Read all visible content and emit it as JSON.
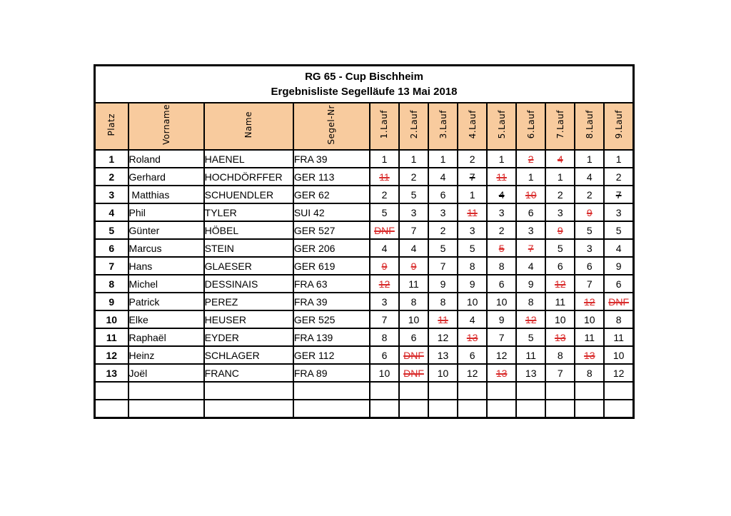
{
  "title": {
    "line1": "RG 65 - Cup Bischheim",
    "line2": "Ergebnisliste Segelläufe 13 Mai 2018"
  },
  "colors": {
    "header_fill": "#F8CB9E",
    "discard_red": "#D92B2B",
    "border": "#000000"
  },
  "columns": [
    "Platz",
    "Vorname",
    "Name",
    "Segel-Nr",
    "1.Lauf",
    "2.Lauf",
    "3.Lauf",
    "4.Lauf",
    "5.Lauf",
    "6.Lauf",
    "7.Lauf",
    "8.Lauf",
    "9.Lauf"
  ],
  "empty_row_count": 2,
  "rows": [
    {
      "platz": "1",
      "vorname": "Roland",
      "name": "HAENEL",
      "segel_nr": "FRA 39",
      "laeufe": [
        {
          "v": "1"
        },
        {
          "v": "1"
        },
        {
          "v": "1"
        },
        {
          "v": "2"
        },
        {
          "v": "1"
        },
        {
          "v": "2",
          "red": true,
          "strike": true
        },
        {
          "v": "4",
          "red": true,
          "strike": true
        },
        {
          "v": "1"
        },
        {
          "v": "1"
        }
      ]
    },
    {
      "platz": "2",
      "vorname": "Gerhard",
      "name": "HOCHDÖRFFER",
      "segel_nr": "GER 113",
      "laeufe": [
        {
          "v": "11",
          "red": true,
          "strike": true
        },
        {
          "v": "2"
        },
        {
          "v": "4"
        },
        {
          "v": "7",
          "strike": true
        },
        {
          "v": "11",
          "red": true,
          "strike": true
        },
        {
          "v": "1"
        },
        {
          "v": "1"
        },
        {
          "v": "4"
        },
        {
          "v": "2"
        }
      ]
    },
    {
      "platz": "3",
      "vorname": " Matthias",
      "name": "SCHUENDLER",
      "segel_nr": "GER 62",
      "laeufe": [
        {
          "v": "2"
        },
        {
          "v": "5"
        },
        {
          "v": "6"
        },
        {
          "v": "1"
        },
        {
          "v": "4",
          "strike": true
        },
        {
          "v": "10",
          "red": true,
          "strike": true
        },
        {
          "v": "2"
        },
        {
          "v": "2"
        },
        {
          "v": "7",
          "strike": true
        }
      ]
    },
    {
      "platz": "4",
      "vorname": "Phil",
      "name": "TYLER",
      "segel_nr": "SUI 42",
      "laeufe": [
        {
          "v": "5"
        },
        {
          "v": "3"
        },
        {
          "v": "3"
        },
        {
          "v": "11",
          "red": true,
          "strike": true
        },
        {
          "v": "3"
        },
        {
          "v": "6"
        },
        {
          "v": "3"
        },
        {
          "v": "9",
          "red": true,
          "strike": true
        },
        {
          "v": "3"
        }
      ]
    },
    {
      "platz": "5",
      "vorname": "Günter",
      "name": "HÖBEL",
      "segel_nr": "GER 527",
      "laeufe": [
        {
          "v": "DNF",
          "red": true,
          "strike": true
        },
        {
          "v": "7"
        },
        {
          "v": "2"
        },
        {
          "v": "3"
        },
        {
          "v": "2"
        },
        {
          "v": "3"
        },
        {
          "v": "9",
          "red": true,
          "strike": true
        },
        {
          "v": "5"
        },
        {
          "v": "5"
        }
      ]
    },
    {
      "platz": "6",
      "vorname": "Marcus",
      "name": "STEIN",
      "segel_nr": "GER 206",
      "laeufe": [
        {
          "v": "4"
        },
        {
          "v": "4"
        },
        {
          "v": "5"
        },
        {
          "v": "5"
        },
        {
          "v": "5",
          "red": true,
          "strike": true
        },
        {
          "v": "7",
          "red": true,
          "strike": true
        },
        {
          "v": "5"
        },
        {
          "v": "3"
        },
        {
          "v": "4"
        }
      ]
    },
    {
      "platz": "7",
      "vorname": "Hans",
      "name": "GLAESER",
      "segel_nr": "GER 619",
      "laeufe": [
        {
          "v": "9",
          "red": true,
          "strike": true
        },
        {
          "v": "9",
          "red": true,
          "strike": true
        },
        {
          "v": "7"
        },
        {
          "v": "8"
        },
        {
          "v": "8"
        },
        {
          "v": "4"
        },
        {
          "v": "6"
        },
        {
          "v": "6"
        },
        {
          "v": "9"
        }
      ]
    },
    {
      "platz": "8",
      "vorname": "Michel",
      "name": "DESSINAIS",
      "segel_nr": "FRA 63",
      "laeufe": [
        {
          "v": "12",
          "red": true,
          "strike": true
        },
        {
          "v": "11"
        },
        {
          "v": "9"
        },
        {
          "v": "9"
        },
        {
          "v": "6"
        },
        {
          "v": "9"
        },
        {
          "v": "12",
          "red": true,
          "strike": true
        },
        {
          "v": "7"
        },
        {
          "v": "6"
        }
      ]
    },
    {
      "platz": "9",
      "vorname": "Patrick",
      "name": "PEREZ",
      "segel_nr": "FRA 39",
      "laeufe": [
        {
          "v": "3"
        },
        {
          "v": "8"
        },
        {
          "v": "8"
        },
        {
          "v": "10"
        },
        {
          "v": "10"
        },
        {
          "v": "8"
        },
        {
          "v": "11"
        },
        {
          "v": "12",
          "red": true,
          "strike": true
        },
        {
          "v": "DNF",
          "red": true,
          "strike": true
        }
      ]
    },
    {
      "platz": "10",
      "vorname": "Elke",
      "name": "HEUSER",
      "segel_nr": "GER 525",
      "laeufe": [
        {
          "v": "7"
        },
        {
          "v": "10"
        },
        {
          "v": "11",
          "red": true,
          "strike": true
        },
        {
          "v": "4"
        },
        {
          "v": "9"
        },
        {
          "v": "12",
          "red": true,
          "strike": true
        },
        {
          "v": "10"
        },
        {
          "v": "10"
        },
        {
          "v": "8"
        }
      ]
    },
    {
      "platz": "11",
      "vorname": "Raphaël",
      "name": "EYDER",
      "segel_nr": "FRA 139",
      "laeufe": [
        {
          "v": "8"
        },
        {
          "v": "6"
        },
        {
          "v": "12"
        },
        {
          "v": "13",
          "red": true,
          "strike": true
        },
        {
          "v": "7"
        },
        {
          "v": "5"
        },
        {
          "v": "13",
          "red": true,
          "strike": true
        },
        {
          "v": "11"
        },
        {
          "v": "11"
        }
      ]
    },
    {
      "platz": "12",
      "vorname": "Heinz",
      "name": "SCHLAGER",
      "segel_nr": "GER 112",
      "laeufe": [
        {
          "v": "6"
        },
        {
          "v": "DNF",
          "red": true,
          "strike": true
        },
        {
          "v": "13"
        },
        {
          "v": "6"
        },
        {
          "v": "12"
        },
        {
          "v": "11"
        },
        {
          "v": "8"
        },
        {
          "v": "13",
          "red": true,
          "strike": true
        },
        {
          "v": "10"
        }
      ]
    },
    {
      "platz": "13",
      "vorname": "Joël",
      "name": "FRANC",
      "segel_nr": "FRA 89",
      "laeufe": [
        {
          "v": "10"
        },
        {
          "v": "DNF",
          "red": true,
          "strike": true
        },
        {
          "v": "10"
        },
        {
          "v": "12"
        },
        {
          "v": "13",
          "red": true,
          "strike": true
        },
        {
          "v": "13"
        },
        {
          "v": "7"
        },
        {
          "v": "8"
        },
        {
          "v": "12"
        }
      ]
    }
  ]
}
